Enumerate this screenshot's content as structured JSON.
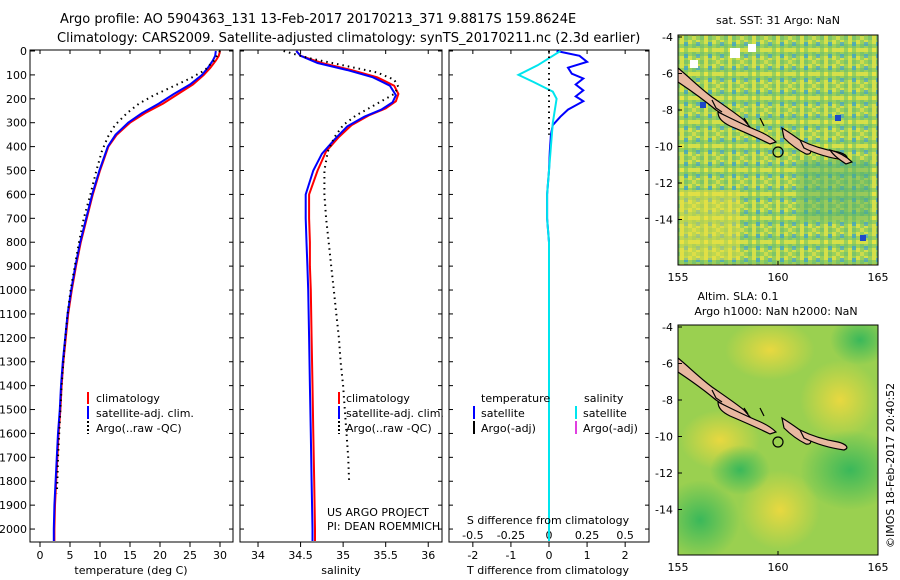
{
  "title": {
    "line1": "Argo profile: AO 5904363_131 13-Feb-2017 20170213_371 9.8817S 159.8624E",
    "line2": "Climatology: CARS2009. Satellite-adjusted climatology: synTS_20170211.nc (2.3d earlier)"
  },
  "colors": {
    "climatology": "#ff0000",
    "satellite": "#0000ff",
    "argo": "#000000",
    "sal_satellite": "#00e5ee",
    "sal_argo": "#e040e0",
    "land": "#e8b8a0"
  },
  "chart_data": [
    {
      "type": "line",
      "id": "temperature",
      "xlabel": "temperature (deg C)",
      "ylim": [
        2050,
        0
      ],
      "xlim": [
        -1.5,
        32
      ],
      "xticks": [
        0,
        5,
        10,
        15,
        20,
        25,
        30
      ],
      "depth_ticks": [
        0,
        100,
        200,
        300,
        400,
        500,
        600,
        700,
        800,
        900,
        1000,
        1100,
        1200,
        1300,
        1400,
        1500,
        1600,
        1700,
        1800,
        1900,
        2000
      ],
      "legend": [
        "climatology",
        "satellite-adj. clim.",
        "Argo(..raw -QC)"
      ],
      "series": [
        {
          "name": "climatology",
          "color": "#ff0000",
          "points": [
            [
              30.0,
              0
            ],
            [
              29.8,
              20
            ],
            [
              29.3,
              40
            ],
            [
              28.4,
              70
            ],
            [
              27.3,
              100
            ],
            [
              25.5,
              140
            ],
            [
              23.0,
              180
            ],
            [
              20.5,
              220
            ],
            [
              17.5,
              260
            ],
            [
              15.0,
              300
            ],
            [
              12.8,
              350
            ],
            [
              11.4,
              400
            ],
            [
              10.0,
              500
            ],
            [
              8.8,
              600
            ],
            [
              7.8,
              700
            ],
            [
              6.8,
              800
            ],
            [
              6.0,
              900
            ],
            [
              5.3,
              1000
            ],
            [
              4.7,
              1100
            ],
            [
              4.3,
              1200
            ],
            [
              3.9,
              1300
            ],
            [
              3.6,
              1400
            ],
            [
              3.4,
              1500
            ],
            [
              3.1,
              1600
            ],
            [
              2.9,
              1700
            ],
            [
              2.7,
              1800
            ],
            [
              2.5,
              1900
            ],
            [
              2.4,
              2000
            ],
            [
              2.4,
              2050
            ]
          ]
        },
        {
          "name": "satellite-adj. clim.",
          "color": "#0000ff",
          "points": [
            [
              29.3,
              0
            ],
            [
              29.2,
              20
            ],
            [
              28.8,
              40
            ],
            [
              28.0,
              70
            ],
            [
              27.0,
              100
            ],
            [
              25.0,
              140
            ],
            [
              22.3,
              180
            ],
            [
              19.8,
              220
            ],
            [
              17.0,
              260
            ],
            [
              14.7,
              300
            ],
            [
              12.6,
              350
            ],
            [
              11.3,
              400
            ],
            [
              9.9,
              500
            ],
            [
              8.7,
              600
            ],
            [
              7.7,
              700
            ],
            [
              6.7,
              800
            ],
            [
              5.9,
              900
            ],
            [
              5.2,
              1000
            ],
            [
              4.6,
              1100
            ],
            [
              4.2,
              1200
            ],
            [
              3.8,
              1300
            ],
            [
              3.5,
              1400
            ],
            [
              3.3,
              1500
            ],
            [
              3.0,
              1600
            ],
            [
              2.8,
              1700
            ],
            [
              2.6,
              1800
            ],
            [
              2.4,
              1900
            ],
            [
              2.3,
              2000
            ],
            [
              2.3,
              2050
            ]
          ]
        },
        {
          "name": "Argo(..raw -QC)",
          "color": "#000000",
          "dotted": true,
          "points": [
            [
              30.0,
              0
            ],
            [
              29.0,
              40
            ],
            [
              27.5,
              80
            ],
            [
              25.0,
              115
            ],
            [
              22.0,
              150
            ],
            [
              19.0,
              185
            ],
            [
              16.5,
              220
            ],
            [
              14.5,
              260
            ],
            [
              12.5,
              310
            ],
            [
              11.3,
              360
            ],
            [
              10.3,
              420
            ],
            [
              9.4,
              500
            ],
            [
              8.4,
              600
            ],
            [
              7.3,
              700
            ],
            [
              6.5,
              800
            ],
            [
              5.8,
              900
            ],
            [
              5.1,
              1000
            ],
            [
              4.6,
              1100
            ],
            [
              4.2,
              1200
            ],
            [
              3.9,
              1300
            ],
            [
              3.6,
              1400
            ],
            [
              3.4,
              1500
            ],
            [
              3.2,
              1600
            ],
            [
              3.0,
              1700
            ],
            [
              2.9,
              1800
            ],
            [
              2.8,
              1850
            ]
          ]
        }
      ]
    },
    {
      "type": "line",
      "id": "salinity",
      "xlabel": "salinity",
      "ylim": [
        2050,
        0
      ],
      "xlim": [
        33.8,
        36.15
      ],
      "xticks": [
        34,
        34.5,
        35,
        35.5,
        36
      ],
      "legend": [
        "climatology",
        "satellite-adj. clim.",
        "Argo(..raw -QC)"
      ],
      "series": [
        {
          "name": "climatology",
          "color": "#ff0000",
          "points": [
            [
              34.45,
              0
            ],
            [
              34.5,
              20
            ],
            [
              34.75,
              50
            ],
            [
              35.1,
              80
            ],
            [
              35.4,
              110
            ],
            [
              35.6,
              145
            ],
            [
              35.65,
              180
            ],
            [
              35.62,
              210
            ],
            [
              35.5,
              240
            ],
            [
              35.3,
              270
            ],
            [
              35.1,
              310
            ],
            [
              34.95,
              360
            ],
            [
              34.8,
              420
            ],
            [
              34.7,
              500
            ],
            [
              34.6,
              600
            ],
            [
              34.6,
              700
            ],
            [
              34.61,
              800
            ],
            [
              34.61,
              900
            ],
            [
              34.62,
              1000
            ],
            [
              34.63,
              1200
            ],
            [
              34.64,
              1400
            ],
            [
              34.65,
              1600
            ],
            [
              34.66,
              1800
            ],
            [
              34.67,
              2000
            ],
            [
              34.67,
              2050
            ]
          ]
        },
        {
          "name": "satellite-adj. clim.",
          "color": "#0000ff",
          "points": [
            [
              34.45,
              0
            ],
            [
              34.5,
              20
            ],
            [
              34.7,
              50
            ],
            [
              35.05,
              80
            ],
            [
              35.35,
              110
            ],
            [
              35.55,
              145
            ],
            [
              35.62,
              185
            ],
            [
              35.58,
              215
            ],
            [
              35.45,
              245
            ],
            [
              35.25,
              275
            ],
            [
              35.05,
              315
            ],
            [
              34.9,
              370
            ],
            [
              34.75,
              430
            ],
            [
              34.65,
              500
            ],
            [
              34.56,
              600
            ],
            [
              34.56,
              700
            ],
            [
              34.57,
              800
            ],
            [
              34.58,
              900
            ],
            [
              34.59,
              1000
            ],
            [
              34.6,
              1200
            ],
            [
              34.61,
              1400
            ],
            [
              34.62,
              1600
            ],
            [
              34.63,
              1800
            ],
            [
              34.64,
              2000
            ],
            [
              34.64,
              2050
            ]
          ]
        },
        {
          "name": "Argo(..raw -QC)",
          "color": "#000000",
          "dotted": true,
          "points": [
            [
              34.3,
              0
            ],
            [
              34.6,
              30
            ],
            [
              35.0,
              60
            ],
            [
              35.4,
              90
            ],
            [
              35.6,
              120
            ],
            [
              35.65,
              150
            ],
            [
              35.6,
              180
            ],
            [
              35.45,
              210
            ],
            [
              35.3,
              240
            ],
            [
              35.15,
              270
            ],
            [
              35.0,
              310
            ],
            [
              34.9,
              360
            ],
            [
              34.82,
              420
            ],
            [
              34.78,
              500
            ],
            [
              34.78,
              600
            ],
            [
              34.8,
              700
            ],
            [
              34.83,
              800
            ],
            [
              34.86,
              900
            ],
            [
              34.89,
              1000
            ],
            [
              34.92,
              1100
            ],
            [
              34.95,
              1200
            ],
            [
              34.97,
              1300
            ],
            [
              35.0,
              1400
            ],
            [
              35.02,
              1500
            ],
            [
              35.04,
              1600
            ],
            [
              35.06,
              1700
            ],
            [
              35.07,
              1800
            ]
          ]
        }
      ]
    },
    {
      "type": "line",
      "id": "differences",
      "xlabel": "T difference from climatology",
      "xlabel_top": "S difference from climatology",
      "ylim": [
        2050,
        0
      ],
      "xlim": [
        -2.6,
        2.6
      ],
      "xticks_T": [
        -2,
        -1,
        0,
        1,
        2
      ],
      "xticks_S": [
        "-0.5",
        "-0.25",
        "0",
        "0.25",
        "0.5"
      ],
      "legend_temperature": {
        "title": "temperature",
        "items": [
          "satellite",
          "Argo(-adj)"
        ]
      },
      "legend_salinity": {
        "title": "salinity",
        "items": [
          "satellite",
          "Argo(-adj)"
        ]
      },
      "series": [
        {
          "name": "T satellite",
          "color": "#0000ff",
          "points": [
            [
              0.2,
              0
            ],
            [
              0.8,
              20
            ],
            [
              1.0,
              45
            ],
            [
              0.5,
              70
            ],
            [
              0.6,
              95
            ],
            [
              0.9,
              115
            ],
            [
              0.7,
              140
            ],
            [
              0.9,
              165
            ],
            [
              0.7,
              190
            ],
            [
              0.9,
              210
            ],
            [
              0.5,
              245
            ],
            [
              0.3,
              275
            ],
            [
              0.1,
              310
            ],
            [
              0.05,
              350
            ],
            [
              0.02,
              420
            ],
            [
              0.0,
              500
            ],
            [
              -0.05,
              600
            ],
            [
              -0.05,
              700
            ],
            [
              0.0,
              800
            ],
            [
              0.0,
              900
            ],
            [
              0.0,
              1000
            ],
            [
              0.0,
              1200
            ],
            [
              0.0,
              1500
            ],
            [
              0.0,
              1800
            ],
            [
              0.0,
              2050
            ]
          ]
        },
        {
          "name": "S satellite",
          "color": "#00e5ee",
          "points": [
            [
              0.3,
              0
            ],
            [
              0.1,
              20
            ],
            [
              -0.3,
              60
            ],
            [
              -0.8,
              100
            ],
            [
              -0.4,
              130
            ],
            [
              0.1,
              170
            ],
            [
              0.2,
              200
            ],
            [
              0.15,
              250
            ],
            [
              0.1,
              300
            ],
            [
              0.05,
              400
            ],
            [
              0.0,
              500
            ],
            [
              -0.05,
              600
            ],
            [
              -0.05,
              700
            ],
            [
              0.0,
              800
            ],
            [
              0.0,
              1000
            ],
            [
              0.0,
              1200
            ],
            [
              0.0,
              1500
            ],
            [
              0.0,
              1800
            ],
            [
              0.0,
              2050
            ]
          ]
        },
        {
          "name": "Argo dotted",
          "color": "#000000",
          "dotted": true,
          "points": [
            [
              0.0,
              0
            ],
            [
              0.0,
              350
            ]
          ]
        }
      ]
    }
  ],
  "notes": {
    "project": "US ARGO PROJECT",
    "pi": "PI: DEAN ROEMMICH"
  },
  "map1": {
    "title": "sat. SST: 31 Argo: NaN",
    "yticks": [
      "-4",
      "-6",
      "-8",
      "-10",
      "-12",
      "-14"
    ],
    "xticks": [
      "155",
      "160",
      "165"
    ]
  },
  "map2": {
    "title1": "Altim. SLA: 0.1",
    "title2": "Argo h1000: NaN h2000: NaN",
    "yticks": [
      "-4",
      "-6",
      "-8",
      "-10",
      "-12",
      "-14"
    ],
    "xticks": [
      "155",
      "160",
      "165"
    ]
  },
  "watermark": "©IMOS 18-Feb-2017 20:40:52"
}
